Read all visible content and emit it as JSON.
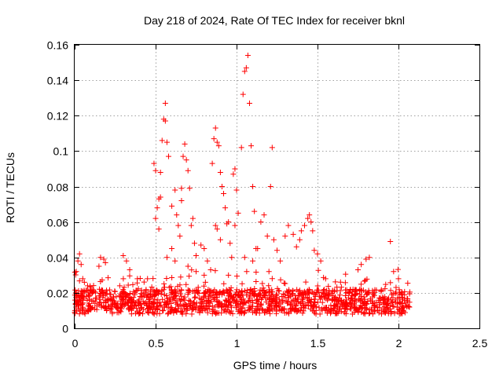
{
  "chart_data": {
    "type": "scatter",
    "title": "Day 218 of 2024, Rate Of TEC Index for receiver bknl",
    "xlabel": "GPS time / hours",
    "ylabel": "ROTI / TECUs",
    "xlim": [
      0,
      2.5
    ],
    "ylim": [
      0,
      0.16
    ],
    "x_ticks": [
      "0",
      "0.5",
      "1",
      "1.5",
      "2",
      "2.5"
    ],
    "y_ticks": [
      "0",
      "0.02",
      "0.04",
      "0.06",
      "0.08",
      "0.1",
      "0.12",
      "0.14",
      "0.16"
    ],
    "grid": true,
    "marker": "plus",
    "series": [
      {
        "name": "ROTI",
        "color": "#ff0000",
        "background": {
          "x_range": [
            0,
            2.07
          ],
          "base_range": [
            0.008,
            0.022
          ],
          "count": 1400
        },
        "points": [
          [
            0.01,
            0.032
          ],
          [
            0.02,
            0.038
          ],
          [
            0.03,
            0.042
          ],
          [
            0.04,
            0.036
          ],
          [
            0.05,
            0.028
          ],
          [
            0.06,
            0.026
          ],
          [
            0.08,
            0.024
          ],
          [
            0.15,
            0.035
          ],
          [
            0.16,
            0.04
          ],
          [
            0.18,
            0.039
          ],
          [
            0.19,
            0.037
          ],
          [
            0.3,
            0.041
          ],
          [
            0.32,
            0.038
          ],
          [
            0.34,
            0.033
          ],
          [
            0.49,
            0.093
          ],
          [
            0.5,
            0.089
          ],
          [
            0.52,
            0.073
          ],
          [
            0.53,
            0.074
          ],
          [
            0.51,
            0.068
          ],
          [
            0.5,
            0.062
          ],
          [
            0.52,
            0.056
          ],
          [
            0.53,
            0.088
          ],
          [
            0.54,
            0.106
          ],
          [
            0.55,
            0.118
          ],
          [
            0.56,
            0.117
          ],
          [
            0.56,
            0.127
          ],
          [
            0.57,
            0.105
          ],
          [
            0.58,
            0.097
          ],
          [
            0.6,
            0.069
          ],
          [
            0.62,
            0.078
          ],
          [
            0.63,
            0.064
          ],
          [
            0.64,
            0.058
          ],
          [
            0.66,
            0.079
          ],
          [
            0.67,
            0.097
          ],
          [
            0.68,
            0.104
          ],
          [
            0.69,
            0.095
          ],
          [
            0.7,
            0.089
          ],
          [
            0.71,
            0.079
          ],
          [
            0.72,
            0.058
          ],
          [
            0.73,
            0.062
          ],
          [
            0.74,
            0.048
          ],
          [
            0.75,
            0.041
          ],
          [
            0.66,
            0.072
          ],
          [
            0.65,
            0.052
          ],
          [
            0.6,
            0.045
          ],
          [
            0.57,
            0.04
          ],
          [
            0.62,
            0.038
          ],
          [
            0.7,
            0.035
          ],
          [
            0.78,
            0.047
          ],
          [
            0.8,
            0.045
          ],
          [
            0.82,
            0.038
          ],
          [
            0.84,
            0.033
          ],
          [
            0.85,
            0.093
          ],
          [
            0.86,
            0.107
          ],
          [
            0.87,
            0.113
          ],
          [
            0.88,
            0.105
          ],
          [
            0.89,
            0.103
          ],
          [
            0.87,
            0.058
          ],
          [
            0.88,
            0.056
          ],
          [
            0.9,
            0.088
          ],
          [
            0.91,
            0.08
          ],
          [
            0.92,
            0.076
          ],
          [
            0.93,
            0.068
          ],
          [
            0.94,
            0.059
          ],
          [
            0.95,
            0.06
          ],
          [
            0.96,
            0.048
          ],
          [
            0.97,
            0.04
          ],
          [
            0.98,
            0.087
          ],
          [
            0.99,
            0.09
          ],
          [
            1.0,
            0.078
          ],
          [
            1.01,
            0.065
          ],
          [
            0.99,
            0.058
          ],
          [
            0.9,
            0.05
          ],
          [
            1.03,
            0.102
          ],
          [
            1.04,
            0.132
          ],
          [
            1.05,
            0.145
          ],
          [
            1.06,
            0.147
          ],
          [
            1.07,
            0.154
          ],
          [
            1.08,
            0.127
          ],
          [
            1.09,
            0.103
          ],
          [
            1.1,
            0.08
          ],
          [
            1.11,
            0.066
          ],
          [
            1.12,
            0.045
          ],
          [
            1.13,
            0.045
          ],
          [
            1.15,
            0.06
          ],
          [
            1.17,
            0.064
          ],
          [
            1.19,
            0.052
          ],
          [
            1.21,
            0.08
          ],
          [
            1.22,
            0.102
          ],
          [
            1.23,
            0.05
          ],
          [
            1.25,
            0.044
          ],
          [
            1.27,
            0.038
          ],
          [
            1.3,
            0.052
          ],
          [
            1.32,
            0.058
          ],
          [
            1.35,
            0.053
          ],
          [
            1.37,
            0.046
          ],
          [
            1.39,
            0.05
          ],
          [
            1.4,
            0.055
          ],
          [
            1.42,
            0.058
          ],
          [
            1.44,
            0.062
          ],
          [
            1.45,
            0.064
          ],
          [
            1.46,
            0.06
          ],
          [
            1.47,
            0.055
          ],
          [
            1.48,
            0.044
          ],
          [
            1.5,
            0.042
          ],
          [
            1.52,
            0.038
          ],
          [
            1.55,
            0.028
          ],
          [
            1.75,
            0.033
          ],
          [
            1.77,
            0.036
          ],
          [
            1.8,
            0.039
          ],
          [
            1.82,
            0.04
          ],
          [
            1.95,
            0.049
          ],
          [
            1.97,
            0.032
          ],
          [
            2.0,
            0.028
          ],
          [
            1.2,
            0.032
          ],
          [
            1.1,
            0.038
          ],
          [
            1.05,
            0.04
          ],
          [
            0.95,
            0.03
          ],
          [
            0.8,
            0.03
          ],
          [
            0.75,
            0.032
          ],
          [
            0.45,
            0.028
          ]
        ]
      }
    ]
  }
}
